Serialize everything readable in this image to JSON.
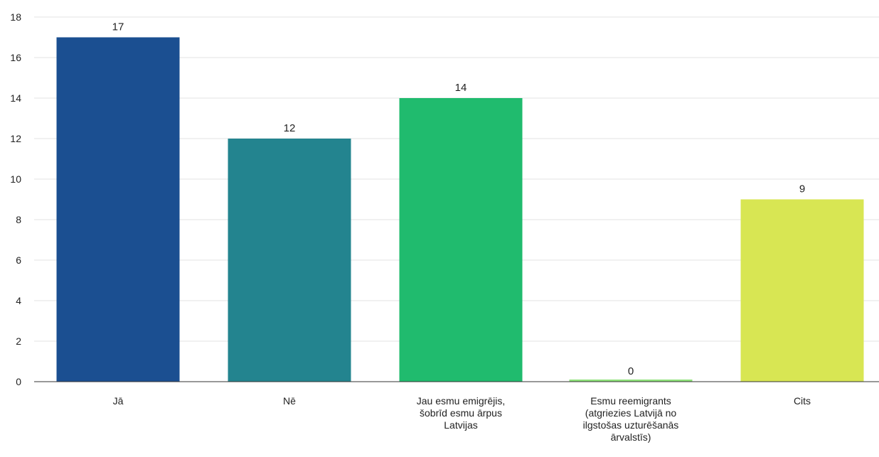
{
  "chart_data": {
    "type": "bar",
    "categories": [
      [
        "Jā"
      ],
      [
        "Nē"
      ],
      [
        "Jau esmu emigrējis,",
        "šobrīd esmu ārpus",
        "Latvijas"
      ],
      [
        "Esmu reemigrants",
        "(atgriezies Latvijā no",
        "ilgstošas uzturēšanās",
        "ārvalstīs)"
      ],
      [
        "Cits"
      ]
    ],
    "values": [
      17,
      12,
      14,
      0,
      9
    ],
    "value_labels": [
      "17",
      "12",
      "14",
      "0",
      "9"
    ],
    "bar_colors": [
      "#1b4f91",
      "#23848f",
      "#20bb6e",
      "#8fe27a",
      "#d8e653"
    ],
    "ylim": [
      0,
      18
    ],
    "yticks": [
      0,
      2,
      4,
      6,
      8,
      10,
      12,
      14,
      16,
      18
    ],
    "ytick_labels": [
      "0",
      "2",
      "4",
      "6",
      "8",
      "10",
      "12",
      "14",
      "16",
      "18"
    ],
    "grid": true,
    "title": "",
    "xlabel": "",
    "ylabel": ""
  }
}
